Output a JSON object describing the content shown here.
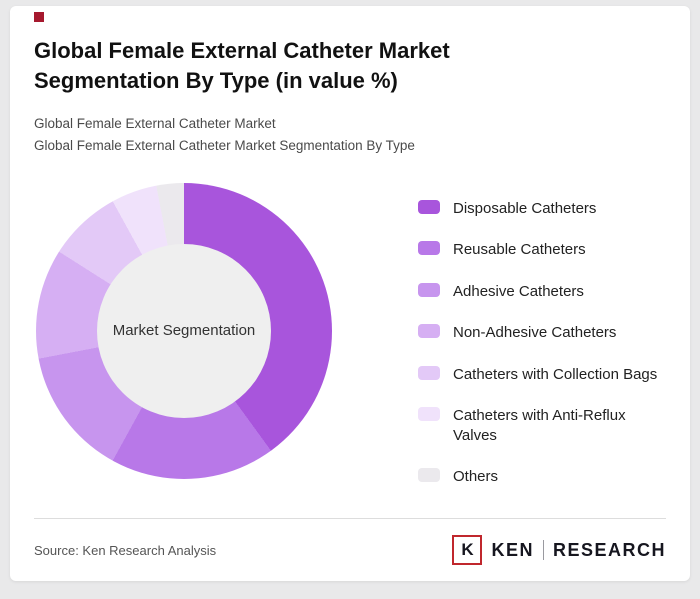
{
  "header": {
    "title": "Global Female External Catheter Market Segmentation By Type (in value %)",
    "subtitle_line1": "Global Female External Catheter Market",
    "subtitle_line2": "Global Female External Catheter Market Segmentation By Type"
  },
  "chart_data": {
    "type": "pie",
    "variant": "donut",
    "title": "Global Female External Catheter Market Segmentation By Type (in value %)",
    "center_label": "Market Segmentation",
    "legend_position": "right",
    "start_angle_deg": 0,
    "direction": "clockwise",
    "segments": [
      {
        "label": "Disposable Catheters",
        "value": 40,
        "color": "#a855dc"
      },
      {
        "label": "Reusable Catheters",
        "value": 18,
        "color": "#b878e8"
      },
      {
        "label": "Adhesive Catheters",
        "value": 14,
        "color": "#c795ee"
      },
      {
        "label": "Non-Adhesive Catheters",
        "value": 12,
        "color": "#d6aff3"
      },
      {
        "label": "Catheters with Collection Bags",
        "value": 8,
        "color": "#e3c9f7"
      },
      {
        "label": "Catheters with Anti-Reflux Valves",
        "value": 5,
        "color": "#f0e2fb"
      },
      {
        "label": "Others",
        "value": 3,
        "color": "#ebe9ed"
      }
    ]
  },
  "footer": {
    "source": "Source: Ken Research Analysis",
    "logo": {
      "k": "K",
      "part1": "KEN",
      "part2": "RESEARCH"
    }
  },
  "colors": {
    "accent_red": "#a6192e",
    "logo_red": "#c0272d",
    "card_bg": "#ffffff",
    "page_bg": "#e9e9ea",
    "donut_hole": "#efefef"
  }
}
